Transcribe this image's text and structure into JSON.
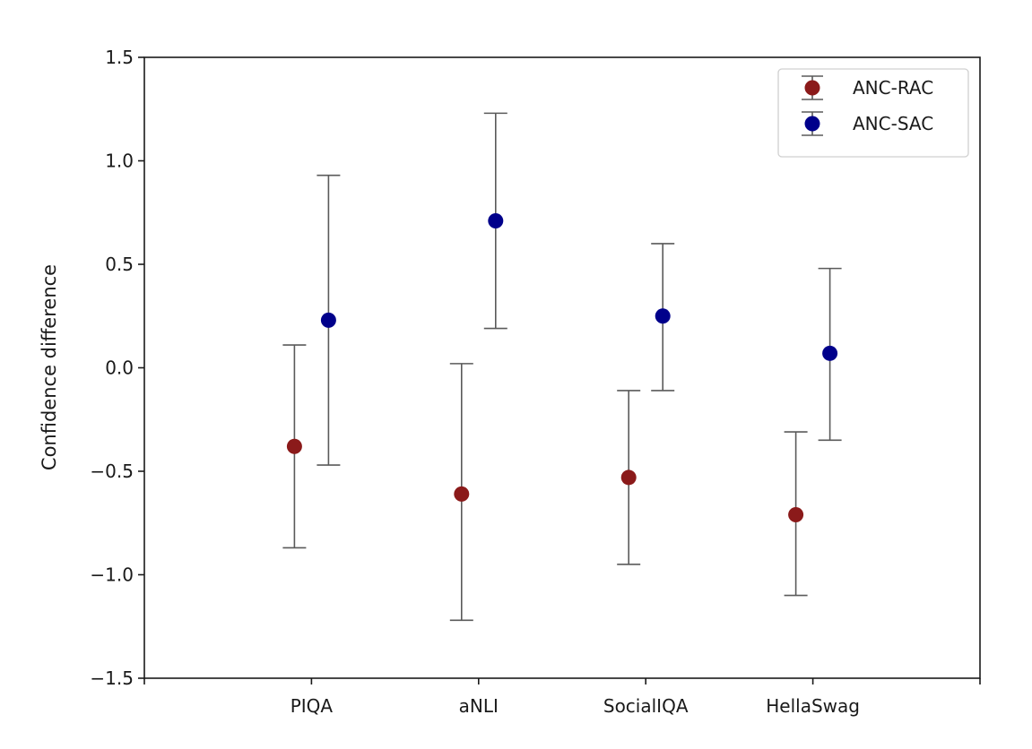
{
  "chart_data": {
    "type": "scatter",
    "title": "",
    "xlabel": "",
    "ylabel": "Confidence difference",
    "categories": [
      "PIQA",
      "aNLI",
      "SocialIQA",
      "HellaSwag"
    ],
    "ylim": [
      -1.5,
      1.5
    ],
    "yticks": [
      "1.5",
      "1.0",
      "0.5",
      "0.0",
      "−0.5",
      "−1.0",
      "−1.5"
    ],
    "ytick_values": [
      1.5,
      1.0,
      0.5,
      0.0,
      -0.5,
      -1.0,
      -1.5
    ],
    "grid": false,
    "legend_position": "top-right",
    "series": [
      {
        "name": "ANC-RAC",
        "color": "#8b1a1a",
        "values": [
          -0.38,
          -0.61,
          -0.53,
          -0.71
        ],
        "err_low": [
          -0.87,
          -1.22,
          -0.95,
          -1.1
        ],
        "err_high": [
          0.11,
          0.02,
          -0.11,
          -0.31
        ]
      },
      {
        "name": "ANC-SAC",
        "color": "#00008b",
        "values": [
          0.23,
          0.71,
          0.25,
          0.07
        ],
        "err_low": [
          -0.47,
          0.19,
          -0.11,
          -0.35
        ],
        "err_high": [
          0.93,
          1.23,
          0.6,
          0.48
        ]
      }
    ],
    "errorbar_color": "#5a5a5a"
  }
}
